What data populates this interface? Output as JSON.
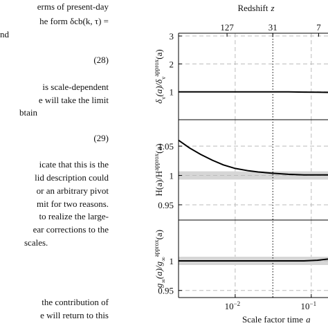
{
  "text": {
    "lines": [
      "erms of present-day",
      "he form δcb(k, τ) =",
      "nd",
      "(28)",
      "is scale-dependent",
      "e will take the limit",
      "btain",
      "(29)",
      "icate that this is the",
      "lid description could",
      "or an arbitrary pivot",
      "mit for two reasons.",
      "to realize the large-",
      "ear corrections to the",
      "scales.",
      "the contribution of",
      "e will return to this"
    ]
  },
  "figure": {
    "top_label": "Redshift",
    "top_label_var": "z",
    "xlabel": "Scale factor time",
    "xlabel_var": "a",
    "xlim": [
      0.0018,
      0.166
    ],
    "xticks": [
      {
        "value": 0.01,
        "base": "10",
        "exponent": "−2"
      },
      {
        "value": 0.1,
        "base": "10",
        "exponent": "−1"
      }
    ],
    "zticks": [
      127,
      31,
      7
    ],
    "vline": {
      "z": 31
    },
    "a": [
      0.0018,
      0.0025,
      0.0035,
      0.005,
      0.007,
      0.01,
      0.015,
      0.02,
      0.03,
      0.05,
      0.08,
      0.12,
      0.166
    ],
    "panels": [
      {
        "ylabel": [
          {
            "text": "δ"
          },
          {
            "text": "ν",
            "script": "sub"
          },
          {
            "text": "(a)/δ"
          },
          {
            "text": "ν",
            "script": "sub"
          },
          {
            "text": "approx",
            "script": "sup"
          },
          {
            "text": "(a)"
          }
        ],
        "ylim": [
          0,
          3.1
        ],
        "yticks": [
          1,
          2,
          3
        ],
        "values": [
          1,
          1,
          1,
          1,
          1,
          1,
          1,
          1,
          1,
          1,
          0.99,
          0.985,
          0.98
        ]
      },
      {
        "ylabel": [
          {
            "text": "H(a)/H"
          },
          {
            "text": "approx",
            "script": "sup"
          },
          {
            "text": "(a)"
          }
        ],
        "ylim": [
          0.924,
          1.095
        ],
        "yticks": [
          0.95,
          1,
          1.05
        ],
        "band": [
          0.993,
          1.007
        ],
        "values": [
          1.06,
          1.047,
          1.036,
          1.026,
          1.018,
          1.012,
          1.008,
          1.006,
          1.004,
          1.002,
          1.001,
          1.001,
          1.001
        ]
      },
      {
        "ylabel": [
          {
            "text": "g"
          },
          {
            "text": "∞",
            "script": "sub"
          },
          {
            "text": "(a)/g"
          },
          {
            "text": "∞",
            "script": "sub"
          },
          {
            "text": "approx",
            "script": "sup"
          },
          {
            "text": "(a)"
          }
        ],
        "ylim": [
          0.938,
          1.069
        ],
        "yticks": [
          0.95,
          1
        ],
        "band": [
          0.993,
          1.007
        ],
        "values": [
          1,
          1,
          1,
          1,
          1,
          1,
          1,
          1,
          1,
          1,
          1,
          1.001,
          1.003
        ]
      }
    ]
  }
}
